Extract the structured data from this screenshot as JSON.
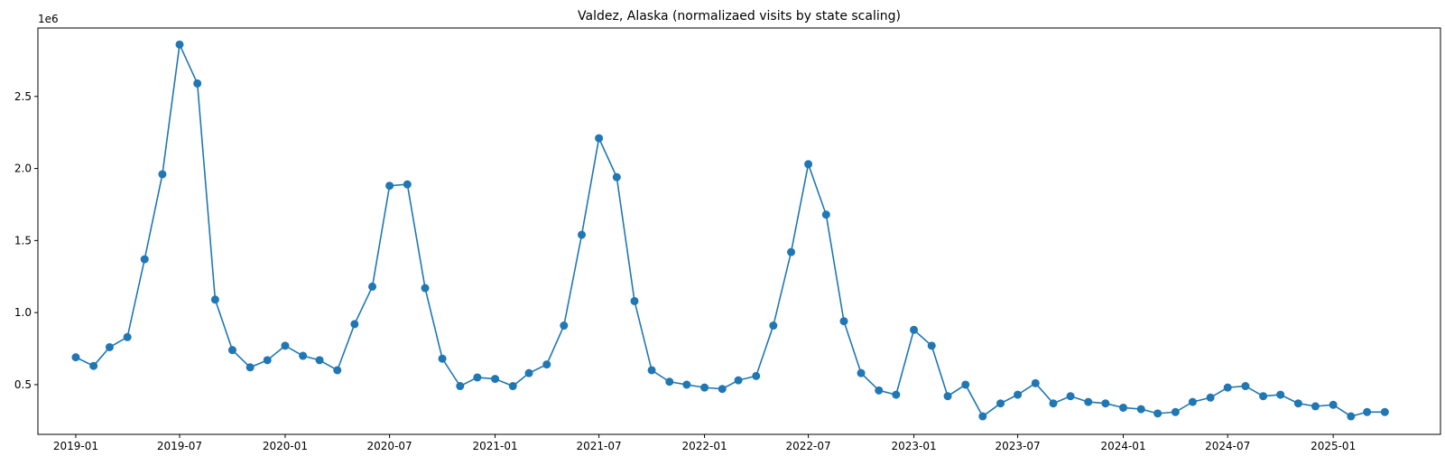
{
  "chart_data": {
    "type": "line",
    "title": "Valdez, Alaska (normalizaed visits by state scaling)",
    "xlabel": "",
    "ylabel": "",
    "y_offset_text": "1e6",
    "y_multiplier": 1000000,
    "ylim": [
      0.155,
      2.975
    ],
    "xlim": [
      "2018-10-27",
      "2025-07-07"
    ],
    "grid": false,
    "legend": "none",
    "colors": {
      "line": "#1f77b4",
      "marker": "#1f77b4"
    },
    "x_ticks": [
      "2019-01",
      "2019-07",
      "2020-01",
      "2020-07",
      "2021-01",
      "2021-07",
      "2022-01",
      "2022-07",
      "2023-01",
      "2023-07",
      "2024-01",
      "2024-07",
      "2025-01"
    ],
    "y_ticks": [
      "0.5",
      "1.0",
      "1.5",
      "2.0",
      "2.5"
    ],
    "series": [
      {
        "x": [
          "2019-01",
          "2019-02",
          "2019-03",
          "2019-04",
          "2019-05",
          "2019-06",
          "2019-07",
          "2019-08",
          "2019-09",
          "2019-10",
          "2019-11",
          "2019-12",
          "2020-01",
          "2020-02",
          "2020-03",
          "2020-04",
          "2020-05",
          "2020-06",
          "2020-07",
          "2020-08",
          "2020-09",
          "2020-10",
          "2020-11",
          "2020-12",
          "2021-01",
          "2021-02",
          "2021-03",
          "2021-04",
          "2021-05",
          "2021-06",
          "2021-07",
          "2021-08",
          "2021-09",
          "2021-10",
          "2021-11",
          "2021-12",
          "2022-01",
          "2022-02",
          "2022-03",
          "2022-04",
          "2022-05",
          "2022-06",
          "2022-07",
          "2022-08",
          "2022-09",
          "2022-10",
          "2022-11",
          "2022-12",
          "2023-01",
          "2023-02",
          "2023-03",
          "2023-04",
          "2023-05",
          "2023-06",
          "2023-07",
          "2023-08",
          "2023-09",
          "2023-10",
          "2023-11",
          "2023-12",
          "2024-01",
          "2024-02",
          "2024-03",
          "2024-04",
          "2024-05",
          "2024-06",
          "2024-07",
          "2024-08",
          "2024-09",
          "2024-10",
          "2024-11",
          "2024-12",
          "2025-01",
          "2025-02",
          "2025-03",
          "2025-04"
        ],
        "y": [
          0.69,
          0.63,
          0.76,
          0.83,
          1.37,
          1.96,
          2.86,
          2.59,
          1.09,
          0.74,
          0.62,
          0.67,
          0.77,
          0.7,
          0.67,
          0.6,
          0.92,
          1.18,
          1.88,
          1.89,
          1.17,
          0.68,
          0.49,
          0.55,
          0.54,
          0.49,
          0.58,
          0.64,
          0.91,
          1.54,
          2.21,
          1.94,
          1.08,
          0.6,
          0.52,
          0.5,
          0.48,
          0.47,
          0.53,
          0.56,
          0.91,
          1.42,
          2.03,
          1.68,
          0.94,
          0.58,
          0.46,
          0.43,
          0.88,
          0.77,
          0.42,
          0.5,
          0.28,
          0.37,
          0.43,
          0.51,
          0.37,
          0.42,
          0.38,
          0.37,
          0.34,
          0.33,
          0.3,
          0.31,
          0.38,
          0.41,
          0.48,
          0.49,
          0.42,
          0.43,
          0.37,
          0.35,
          0.36,
          0.28,
          0.31,
          0.31
        ]
      }
    ]
  }
}
